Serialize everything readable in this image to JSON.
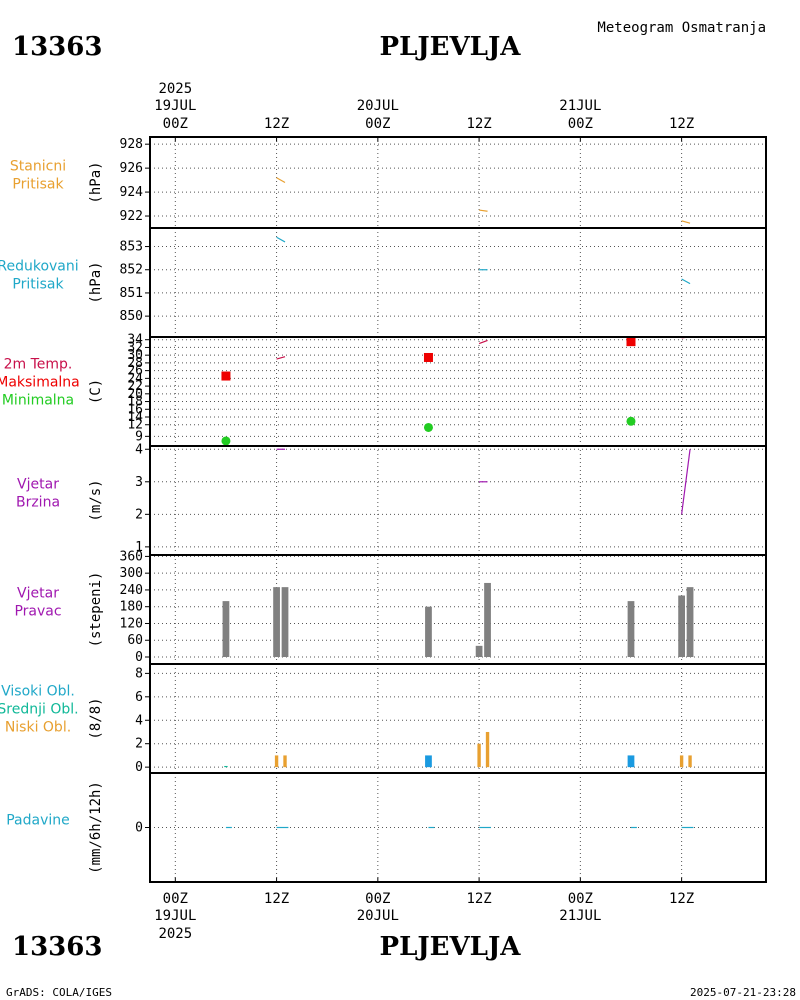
{
  "header": {
    "station_id": "13363",
    "station_name": "PLJEVLJA",
    "meteogram_title": "Meteogram Osmatranja"
  },
  "footer": {
    "software": "GrADS: COLA/IGES",
    "timestamp": "2025-07-21-23:28"
  },
  "time_axis": {
    "ticks": [
      "00Z",
      "12Z",
      "00Z",
      "12Z",
      "00Z",
      "12Z"
    ],
    "hours": [
      0,
      12,
      24,
      36,
      48,
      60
    ],
    "day_labels": [
      {
        "hour": 0,
        "date": "19JUL",
        "year": "2025"
      },
      {
        "hour": 24,
        "date": "20JUL",
        "year": ""
      },
      {
        "hour": 48,
        "date": "21JUL",
        "year": ""
      }
    ],
    "range_hours": [
      -3,
      70
    ]
  },
  "colors": {
    "orange": "#e8a030",
    "cyan": "#20a8c8",
    "red": "#ee0000",
    "green": "#22cc22",
    "magenta": "#a018b0",
    "crimson": "#c8104a",
    "gray": "#808080",
    "teal": "#10b898",
    "blue": "#1a9ae0"
  },
  "chart_data": [
    {
      "type": "line",
      "id": "station-pressure",
      "labels": [
        "Stanicni",
        "Pritisak"
      ],
      "label_color": "#e8a030",
      "unit": "(hPa)",
      "ylim": [
        921,
        928.6
      ],
      "yticks": [
        922,
        924,
        926,
        928
      ],
      "series": [
        {
          "name": "Stanicni Pritisak",
          "color": "#e8a030",
          "segments": [
            [
              [
                12,
                925.2
              ],
              [
                13,
                924.8
              ]
            ],
            [
              [
                36,
                922.5
              ],
              [
                37,
                922.4
              ]
            ],
            [
              [
                60,
                921.6
              ],
              [
                61,
                921.4
              ]
            ]
          ]
        }
      ]
    },
    {
      "type": "line",
      "id": "reduced-pressure",
      "labels": [
        "Redukovani",
        "Pritisak"
      ],
      "label_color": "#20a8c8",
      "unit": "(hPa)",
      "ylim": [
        849.1,
        853.8
      ],
      "yticks": [
        850,
        851,
        852,
        853
      ],
      "series": [
        {
          "name": "Redukovani Pritisak",
          "color": "#20a8c8",
          "segments": [
            [
              [
                12,
                853.4
              ],
              [
                13,
                853.2
              ]
            ],
            [
              [
                36,
                852
              ],
              [
                37,
                852
              ]
            ],
            [
              [
                60,
                851.6
              ],
              [
                61,
                851.4
              ]
            ]
          ]
        }
      ]
    },
    {
      "type": "scatter",
      "id": "temperature",
      "labels": [
        "2m Temp.",
        "Maksimalna",
        "Minimalna"
      ],
      "label_colors": [
        "#c8104a",
        "#ee0000",
        "#22cc22"
      ],
      "unit": "(C)",
      "ylim": [
        6.5,
        34.7
      ],
      "yticks": [
        9,
        12,
        14,
        16,
        18,
        20,
        22,
        24,
        26,
        28,
        30,
        32,
        34
      ],
      "series": [
        {
          "name": "Maksimalna",
          "color": "#ee0000",
          "marker": "square",
          "points": [
            [
              6,
              24.6
            ],
            [
              30,
              29.4
            ],
            [
              54,
              33.5
            ]
          ]
        },
        {
          "name": "Minimalna",
          "color": "#22cc22",
          "marker": "circle",
          "points": [
            [
              6,
              7.8
            ],
            [
              30,
              11.3
            ],
            [
              54,
              12.9
            ]
          ]
        },
        {
          "name": "2m Temp.",
          "color": "#c8104a",
          "marker": "line",
          "segments": [
            [
              [
                12,
                29
              ],
              [
                13,
                29.6
              ]
            ],
            [
              [
                36,
                33
              ],
              [
                37,
                33.8
              ]
            ],
            [
              [
                60,
                34.5
              ],
              [
                61,
                34.7
              ]
            ]
          ]
        }
      ]
    },
    {
      "type": "line",
      "id": "wind-speed",
      "labels": [
        "Vjetar",
        "Brzina"
      ],
      "label_color": "#a018b0",
      "unit": "(m/s)",
      "ylim": [
        0.75,
        4.1
      ],
      "yticks": [
        1,
        2,
        3,
        4
      ],
      "series": [
        {
          "name": "Vjetar Brzina",
          "color": "#a018b0",
          "segments": [
            [
              [
                12,
                4
              ],
              [
                13,
                4
              ]
            ],
            [
              [
                36,
                3
              ],
              [
                37,
                3
              ]
            ],
            [
              [
                60,
                2
              ],
              [
                61,
                4
              ]
            ]
          ]
        }
      ]
    },
    {
      "type": "bar",
      "id": "wind-direction",
      "labels": [
        "Vjetar",
        "Pravac"
      ],
      "label_color": "#a018b0",
      "unit": "(stepeni)",
      "ylim": [
        -25,
        365
      ],
      "yticks": [
        0,
        60,
        120,
        180,
        240,
        300,
        360
      ],
      "series": [
        {
          "name": "Pravac",
          "color": "#808080",
          "width_hours": 0.8,
          "points": [
            [
              6,
              200
            ],
            [
              12,
              250
            ],
            [
              13,
              250
            ],
            [
              30,
              180
            ],
            [
              36,
              40
            ],
            [
              37,
              265
            ],
            [
              54,
              200
            ],
            [
              60,
              220
            ],
            [
              61,
              250
            ]
          ]
        }
      ]
    },
    {
      "type": "bar",
      "id": "cloud-cover",
      "labels": [
        "Visoki Obl.",
        "Srednji Obl.",
        "Niski Obl."
      ],
      "label_colors": [
        "#20a8c8",
        "#10b898",
        "#e8a030"
      ],
      "unit": "(8/8)",
      "ylim": [
        -0.5,
        8.8
      ],
      "yticks": [
        0,
        2,
        4,
        6,
        8
      ],
      "series": [
        {
          "name": "Visoki Obl.",
          "color": "#1a9ae0",
          "width_hours": 0.8,
          "points": [
            [
              30,
              1
            ],
            [
              54,
              1
            ]
          ]
        },
        {
          "name": "Srednji Obl.",
          "color": "#10b898",
          "width_hours": 0.4,
          "points": [
            [
              6,
              0.1
            ]
          ]
        },
        {
          "name": "Niski Obl.",
          "color": "#e8a030",
          "width_hours": 0.4,
          "points": [
            [
              12,
              1
            ],
            [
              13,
              1
            ],
            [
              36,
              2
            ],
            [
              37,
              3
            ],
            [
              60,
              1
            ],
            [
              61,
              1
            ]
          ]
        }
      ]
    },
    {
      "type": "bar",
      "id": "precipitation",
      "labels": [
        "Padavine"
      ],
      "label_color": "#20a8c8",
      "unit": "(mm/6h/12h)",
      "ylim": [
        -2,
        2
      ],
      "yticks": [
        0
      ],
      "series": [
        {
          "name": "Padavine",
          "color": "#20a8c8",
          "marker": "line",
          "segments": [
            [
              [
                6,
                0
              ],
              [
                6.7,
                0
              ]
            ],
            [
              [
                12,
                0
              ],
              [
                13.4,
                0
              ]
            ],
            [
              [
                30,
                0
              ],
              [
                30.7,
                0
              ]
            ],
            [
              [
                36,
                0
              ],
              [
                37.4,
                0
              ]
            ],
            [
              [
                54,
                0
              ],
              [
                54.7,
                0
              ]
            ],
            [
              [
                60,
                0
              ],
              [
                61.4,
                0
              ]
            ]
          ]
        }
      ]
    }
  ]
}
